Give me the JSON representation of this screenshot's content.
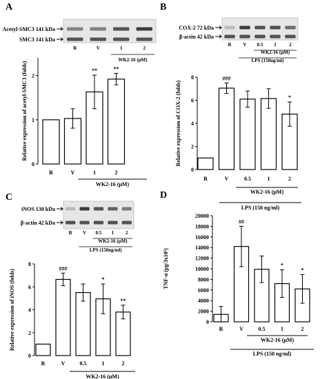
{
  "panels": [
    {
      "letter": "A",
      "blots": [
        {
          "label": "Acetyl-SMC3 141 kDa"
        },
        {
          "label": "SMC3 141 kDa"
        }
      ],
      "blot_lanes": [
        "R",
        "V",
        "1",
        "2"
      ],
      "blot_group": "WK2-16 (μM)",
      "blot_lps": ""
    },
    {
      "letter": "B",
      "blots": [
        {
          "label": "COX-2 72 kDa"
        },
        {
          "label": "β-actin 42 kDa"
        }
      ],
      "blot_lanes": [
        "R",
        "V",
        "0.5",
        "1",
        "2"
      ],
      "blot_group": "WK2-16 (μM)",
      "blot_lps": "LPS (150ng/ml)"
    },
    {
      "letter": "C",
      "blots": [
        {
          "label": "iNOS 130 kDa"
        },
        {
          "label": "β-actin 42 kDa"
        }
      ],
      "blot_lanes": [
        "R",
        "V",
        "0.5",
        "1",
        "2"
      ],
      "blot_group": "WK2-16 (μM)",
      "blot_lps": "LPS (150ng/ml)"
    },
    {
      "letter": "D",
      "blots": [],
      "blot_lanes": [],
      "blot_group": "",
      "blot_lps": ""
    }
  ],
  "chart_data": [
    {
      "type": "bar",
      "ylabel": "Relative expression of acetyl-SMC3 (folds)",
      "ylim": [
        0,
        2.4
      ],
      "yticks": [
        0,
        1,
        2
      ],
      "categories": [
        "R",
        "V",
        "1",
        "2"
      ],
      "values": [
        1.0,
        1.03,
        1.63,
        1.92
      ],
      "errors": [
        0,
        0.22,
        0.38,
        0.13
      ],
      "significance": [
        "",
        "",
        "**",
        "**"
      ],
      "group_label": "WK2-16 (μM)",
      "lps_label": ""
    },
    {
      "type": "bar",
      "ylabel": "Relative expression of COX-2 (folds)",
      "ylim": [
        0,
        8
      ],
      "yticks": [
        0,
        2,
        4,
        6,
        8
      ],
      "categories": [
        "R",
        "V",
        "0.5",
        "1",
        "2"
      ],
      "values": [
        1.0,
        7.05,
        6.1,
        6.15,
        4.8
      ],
      "errors": [
        0,
        0.45,
        0.7,
        0.85,
        1.05
      ],
      "significance": [
        "",
        "###",
        "",
        "",
        "*"
      ],
      "group_label": "WK2-16 (μM)",
      "lps_label": "LPS (150 ng/ml)"
    },
    {
      "type": "bar",
      "ylabel": "Relative expression of iNOS (folds)",
      "ylim": [
        0,
        8
      ],
      "yticks": [
        0,
        2,
        4,
        6,
        8
      ],
      "categories": [
        "R",
        "V",
        "0.5",
        "1",
        "2"
      ],
      "values": [
        1.0,
        6.65,
        5.5,
        4.95,
        3.8
      ],
      "errors": [
        0,
        0.55,
        0.75,
        1.3,
        0.6
      ],
      "significance": [
        "",
        "###",
        "",
        "*",
        "**"
      ],
      "group_label": "WK2-16 (μM)",
      "lps_label": "LPS (150 ng/ml)"
    },
    {
      "type": "bar",
      "ylabel": "TNF-α (pg/3x10⁵)",
      "ylim": [
        0,
        20000
      ],
      "yticks": [
        0,
        2000,
        4000,
        6000,
        8000,
        10000,
        12000,
        14000,
        16000,
        18000,
        20000
      ],
      "categories": [
        "R",
        "V",
        "0.5",
        "1",
        "2"
      ],
      "values": [
        1400,
        14200,
        9900,
        7200,
        6200
      ],
      "errors": [
        1500,
        3800,
        2500,
        2600,
        2700
      ],
      "significance": [
        "",
        "##",
        "",
        "*",
        "*"
      ],
      "group_label": "WK2-16 (μM)",
      "lps_label": "LPS (150 ng/ml)"
    }
  ]
}
